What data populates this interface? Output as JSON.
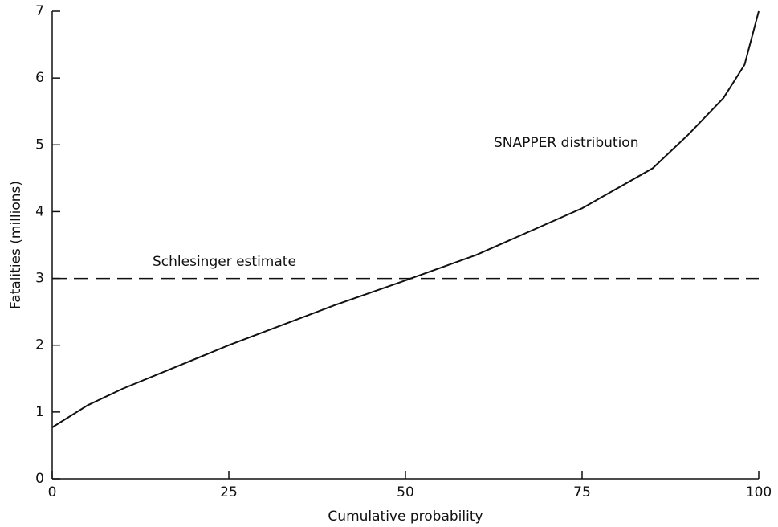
{
  "chart_data": {
    "type": "line",
    "xlabel": "Cumulative probability",
    "ylabel": "Fatalities (millions)",
    "xlim": [
      0,
      100
    ],
    "xticks": [
      0,
      25,
      50,
      75,
      100
    ],
    "ylim": [
      0,
      7
    ],
    "yticks": [
      0,
      1,
      2,
      3,
      4,
      5,
      6,
      7
    ],
    "series": [
      {
        "name": "SNAPPER distribution",
        "color": "#111111",
        "dash": false,
        "x": [
          0,
          5,
          10,
          25,
          40,
          50,
          60,
          75,
          85,
          90,
          95,
          98,
          100
        ],
        "values": [
          0.77,
          1.1,
          1.35,
          2.0,
          2.6,
          2.97,
          3.35,
          4.05,
          4.65,
          5.15,
          5.7,
          6.2,
          7.0
        ]
      },
      {
        "name": "Schlesinger estimate",
        "color": "#111111",
        "dash": true,
        "x": [
          0,
          100
        ],
        "values": [
          3,
          3
        ]
      }
    ]
  }
}
